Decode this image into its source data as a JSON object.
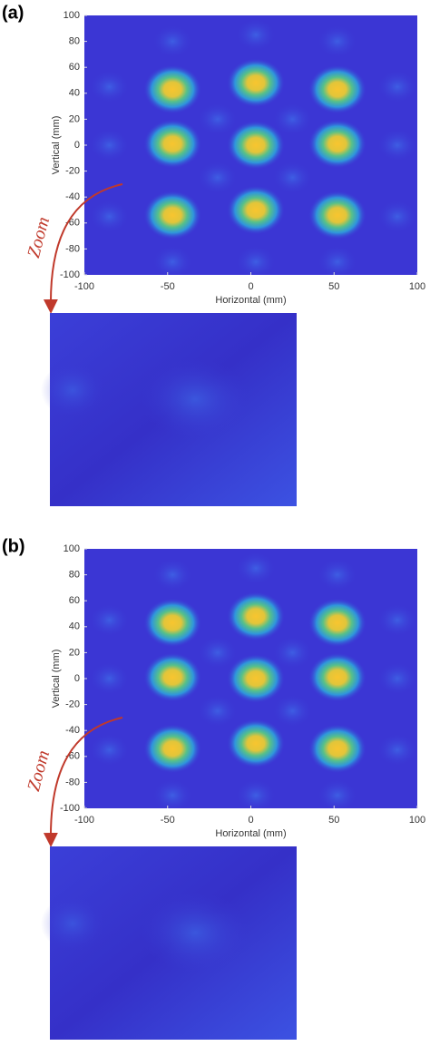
{
  "chart_data": [
    {
      "type": "heatmap",
      "panel_label": "(a)",
      "xlabel": "Horizontal (mm)",
      "ylabel": "Vertical (mm)",
      "annotation": "Zoom",
      "xlim": [
        -100,
        100
      ],
      "ylim": [
        -100,
        100
      ],
      "xticks": [
        -100,
        -50,
        0,
        50,
        100
      ],
      "yticks": [
        100,
        80,
        60,
        40,
        20,
        0,
        -20,
        -40,
        -60,
        -80,
        -100
      ],
      "peaks": {
        "x": [
          -47,
          3,
          52,
          -47,
          3,
          52,
          -47,
          3,
          52
        ],
        "y": [
          43,
          48,
          43,
          1,
          0,
          1,
          -54,
          -50,
          -54
        ]
      }
    },
    {
      "type": "heatmap",
      "panel_label": "(b)",
      "xlabel": "Horizontal (mm)",
      "ylabel": "Vertical (mm)",
      "annotation": "Zoom",
      "xlim": [
        -100,
        100
      ],
      "ylim": [
        -100,
        100
      ],
      "xticks": [
        -100,
        -50,
        0,
        50,
        100
      ],
      "yticks": [
        100,
        80,
        60,
        40,
        20,
        0,
        -20,
        -40,
        -60,
        -80,
        -100
      ],
      "peaks": {
        "x": [
          -47,
          3,
          52,
          -47,
          3,
          52,
          -47,
          3,
          52
        ],
        "y": [
          43,
          48,
          43,
          1,
          0,
          1,
          -54,
          -50,
          -54
        ]
      }
    }
  ]
}
